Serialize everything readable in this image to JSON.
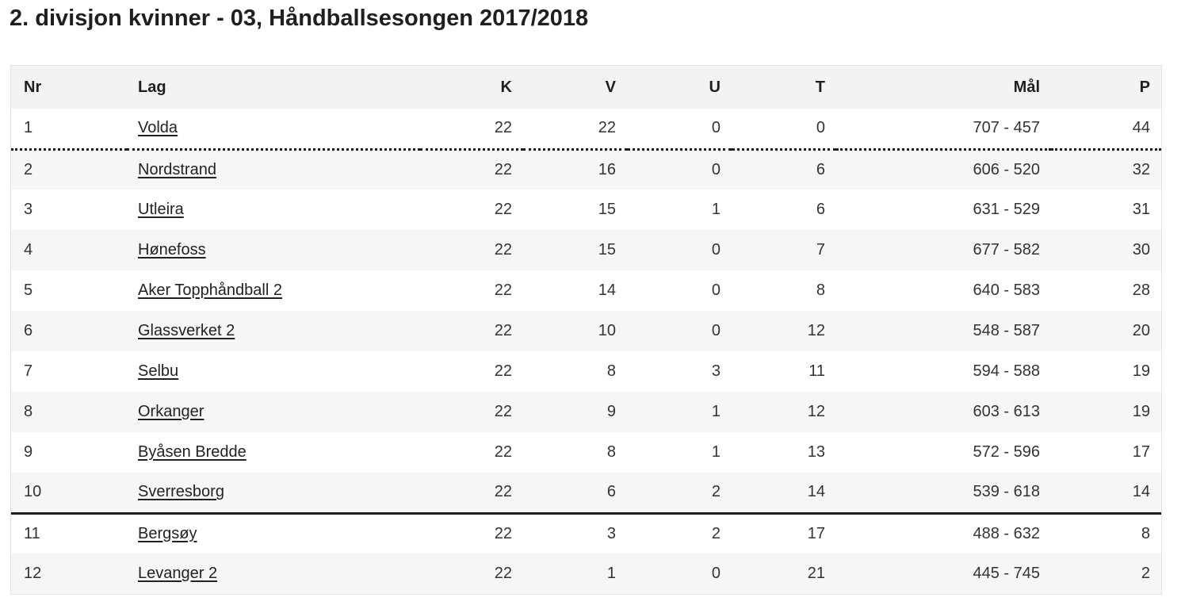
{
  "page": {
    "title": "2. divisjon kvinner - 03, Håndballsesongen 2017/2018"
  },
  "table": {
    "headers": {
      "nr": "Nr",
      "lag": "Lag",
      "k": "K",
      "v": "V",
      "u": "U",
      "t": "T",
      "mal": "Mål",
      "p": "P"
    },
    "rows": [
      {
        "nr": "1",
        "lag": "Volda",
        "k": "22",
        "v": "22",
        "u": "0",
        "t": "0",
        "mal": "707 - 457",
        "p": "44"
      },
      {
        "nr": "2",
        "lag": "Nordstrand",
        "k": "22",
        "v": "16",
        "u": "0",
        "t": "6",
        "mal": "606 - 520",
        "p": "32"
      },
      {
        "nr": "3",
        "lag": "Utleira",
        "k": "22",
        "v": "15",
        "u": "1",
        "t": "6",
        "mal": "631 - 529",
        "p": "31"
      },
      {
        "nr": "4",
        "lag": "Hønefoss",
        "k": "22",
        "v": "15",
        "u": "0",
        "t": "7",
        "mal": "677 - 582",
        "p": "30"
      },
      {
        "nr": "5",
        "lag": "Aker Topphåndball 2",
        "k": "22",
        "v": "14",
        "u": "0",
        "t": "8",
        "mal": "640 - 583",
        "p": "28"
      },
      {
        "nr": "6",
        "lag": "Glassverket 2",
        "k": "22",
        "v": "10",
        "u": "0",
        "t": "12",
        "mal": "548 - 587",
        "p": "20"
      },
      {
        "nr": "7",
        "lag": "Selbu",
        "k": "22",
        "v": "8",
        "u": "3",
        "t": "11",
        "mal": "594 - 588",
        "p": "19"
      },
      {
        "nr": "8",
        "lag": "Orkanger",
        "k": "22",
        "v": "9",
        "u": "1",
        "t": "12",
        "mal": "603 - 613",
        "p": "19"
      },
      {
        "nr": "9",
        "lag": "Byåsen Bredde",
        "k": "22",
        "v": "8",
        "u": "1",
        "t": "13",
        "mal": "572 - 596",
        "p": "17"
      },
      {
        "nr": "10",
        "lag": "Sverresborg",
        "k": "22",
        "v": "6",
        "u": "2",
        "t": "14",
        "mal": "539 - 618",
        "p": "14"
      },
      {
        "nr": "11",
        "lag": "Bergsøy",
        "k": "22",
        "v": "3",
        "u": "2",
        "t": "17",
        "mal": "488 - 632",
        "p": "8"
      },
      {
        "nr": "12",
        "lag": "Levanger 2",
        "k": "22",
        "v": "1",
        "u": "0",
        "t": "21",
        "mal": "445 - 745",
        "p": "2"
      }
    ]
  }
}
